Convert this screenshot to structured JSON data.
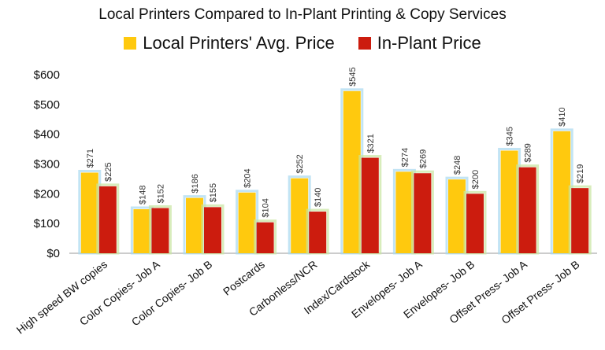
{
  "chart_data": {
    "type": "bar",
    "title": "Local Printers Compared to In-Plant Printing & Copy Services",
    "categories": [
      "High speed BW copies",
      "Color Copies- Job A",
      "Color Copies- Job B",
      "Postcards",
      "Carbonless/NCR",
      "Index/Cardstock",
      "Envelopes- Job A",
      "Envelopes- Job B",
      "Offset Press- Job A",
      "Offset Press- Job B"
    ],
    "series": [
      {
        "name": "Local Printers' Avg. Price",
        "color": "#ffc90e",
        "values": [
          271,
          148,
          186,
          204,
          252,
          545,
          274,
          248,
          345,
          410
        ],
        "labels": [
          "$271",
          "$148",
          "$186",
          "$204",
          "$252",
          "$545",
          "$274",
          "$248",
          "$345",
          "$410"
        ]
      },
      {
        "name": "In-Plant Price",
        "color": "#cc1c0e",
        "values": [
          225,
          152,
          155,
          104,
          140,
          321,
          269,
          200,
          289,
          219
        ],
        "labels": [
          "$225",
          "$152",
          "$155",
          "$104",
          "$140",
          "$321",
          "$269",
          "$200",
          "$289",
          "$219"
        ]
      }
    ],
    "ylim": [
      0,
      600
    ],
    "yticks": [
      0,
      100,
      200,
      300,
      400,
      500,
      600
    ],
    "ytick_labels": [
      "$0",
      "$100",
      "$200",
      "$300",
      "$400",
      "$500",
      "$600"
    ],
    "grid": false,
    "legend_position": "top"
  }
}
